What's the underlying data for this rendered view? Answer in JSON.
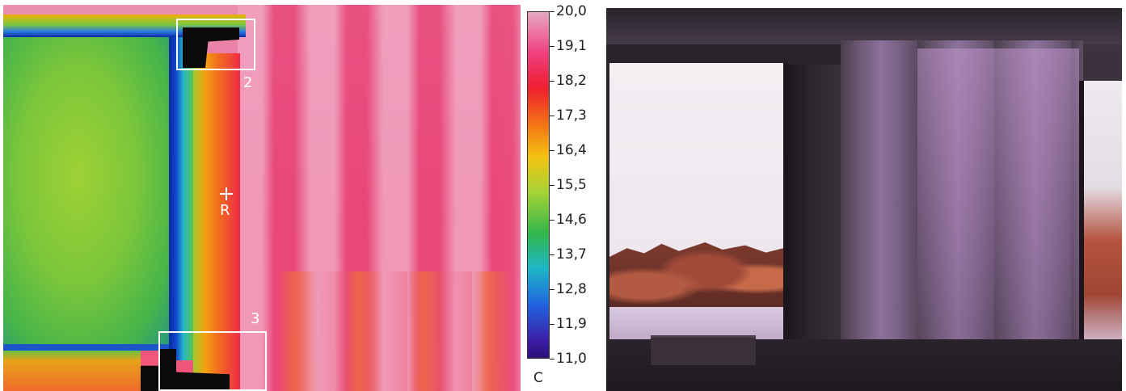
{
  "thermal_image": {
    "regions": [
      {
        "label": "2"
      },
      {
        "label": "3"
      }
    ],
    "marker_label": "R"
  },
  "color_scale": {
    "ticks": [
      "20,0",
      "19,1",
      "18,2",
      "17,3",
      "16,4",
      "15,5",
      "14,6",
      "13,7",
      "12,8",
      "11,9",
      "11,0"
    ],
    "unit": "C",
    "max": 20.0,
    "min": 11.0
  },
  "colors": {
    "scale_top": "#e6a8c0",
    "scale_bottom": "#2c0e7a",
    "cold_spot": "#0a0a0a",
    "annotation": "#ffffff"
  }
}
